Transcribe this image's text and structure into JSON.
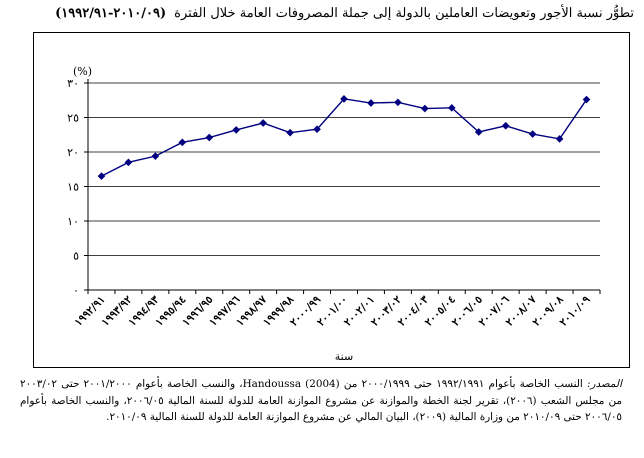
{
  "title": {
    "text": "تطوُّر نسبة الأجور وتعويضات العاملين بالدولة إلى جملة المصروفات العامة خلال الفترة",
    "period": "(٢٠١٠/٠٩-١٩٩٢/٩١)"
  },
  "chart_data": {
    "type": "line",
    "xlabel": "سنة",
    "ylabel": "(%)",
    "ylim": [
      0,
      30
    ],
    "y_ticks": [
      "٠",
      "٥",
      "١٠",
      "١٥",
      "٢٠",
      "٢٥",
      "٣٠"
    ],
    "grid": true,
    "legend": "none",
    "categories": [
      "١٩٩٢/٩١",
      "١٩٩٣/٩٢",
      "١٩٩٤/٩٣",
      "١٩٩٥/٩٤",
      "١٩٩٦/٩٥",
      "١٩٩٧/٩٦",
      "١٩٩٨/٩٧",
      "١٩٩٩/٩٨",
      "٢٠٠٠/٩٩",
      "٢٠٠١/٠٠",
      "٢٠٠٢/٠١",
      "٢٠٠٣/٠٢",
      "٢٠٠٤/٠٣",
      "٢٠٠٥/٠٤",
      "٢٠٠٦/٠٥",
      "٢٠٠٧/٠٦",
      "٢٠٠٨/٠٧",
      "٢٠٠٩/٠٨",
      "٢٠١٠/٠٩"
    ],
    "values": [
      16.5,
      18.5,
      19.4,
      21.4,
      22.1,
      23.2,
      24.2,
      22.8,
      23.3,
      27.7,
      27.1,
      27.2,
      26.3,
      26.4,
      22.9,
      23.8,
      22.6,
      21.9,
      27.6
    ],
    "colors": {
      "line": "#000080",
      "marker": "#000080",
      "grid": "#000000"
    }
  },
  "source": {
    "label": "المصدر:",
    "text": "النسب الخاصة بأعوام ١٩٩٢/١٩٩١ حتى ٢٠٠٠/١٩٩٩ من Handoussa (2004)، والنسب الخاصة بأعوام ٢٠٠١/٢٠٠٠ حتى ٢٠٠٣/٠٢ من مجلس الشعب (٢٠٠٦)، تقرير لجنة الخطة والموازنة عن مشروع الموازنة العامة للدولة للسنة المالية ٢٠٠٦/٠٥، والنسب الخاصة بأعوام ٢٠٠٦/٠٥ حتى ٢٠١٠/٠٩ من وزارة المالية (٢٠٠٩)، البيان المالي عن مشروع الموازنة العامة للدولة للسنة المالية ٢٠١٠/٠٩."
  }
}
